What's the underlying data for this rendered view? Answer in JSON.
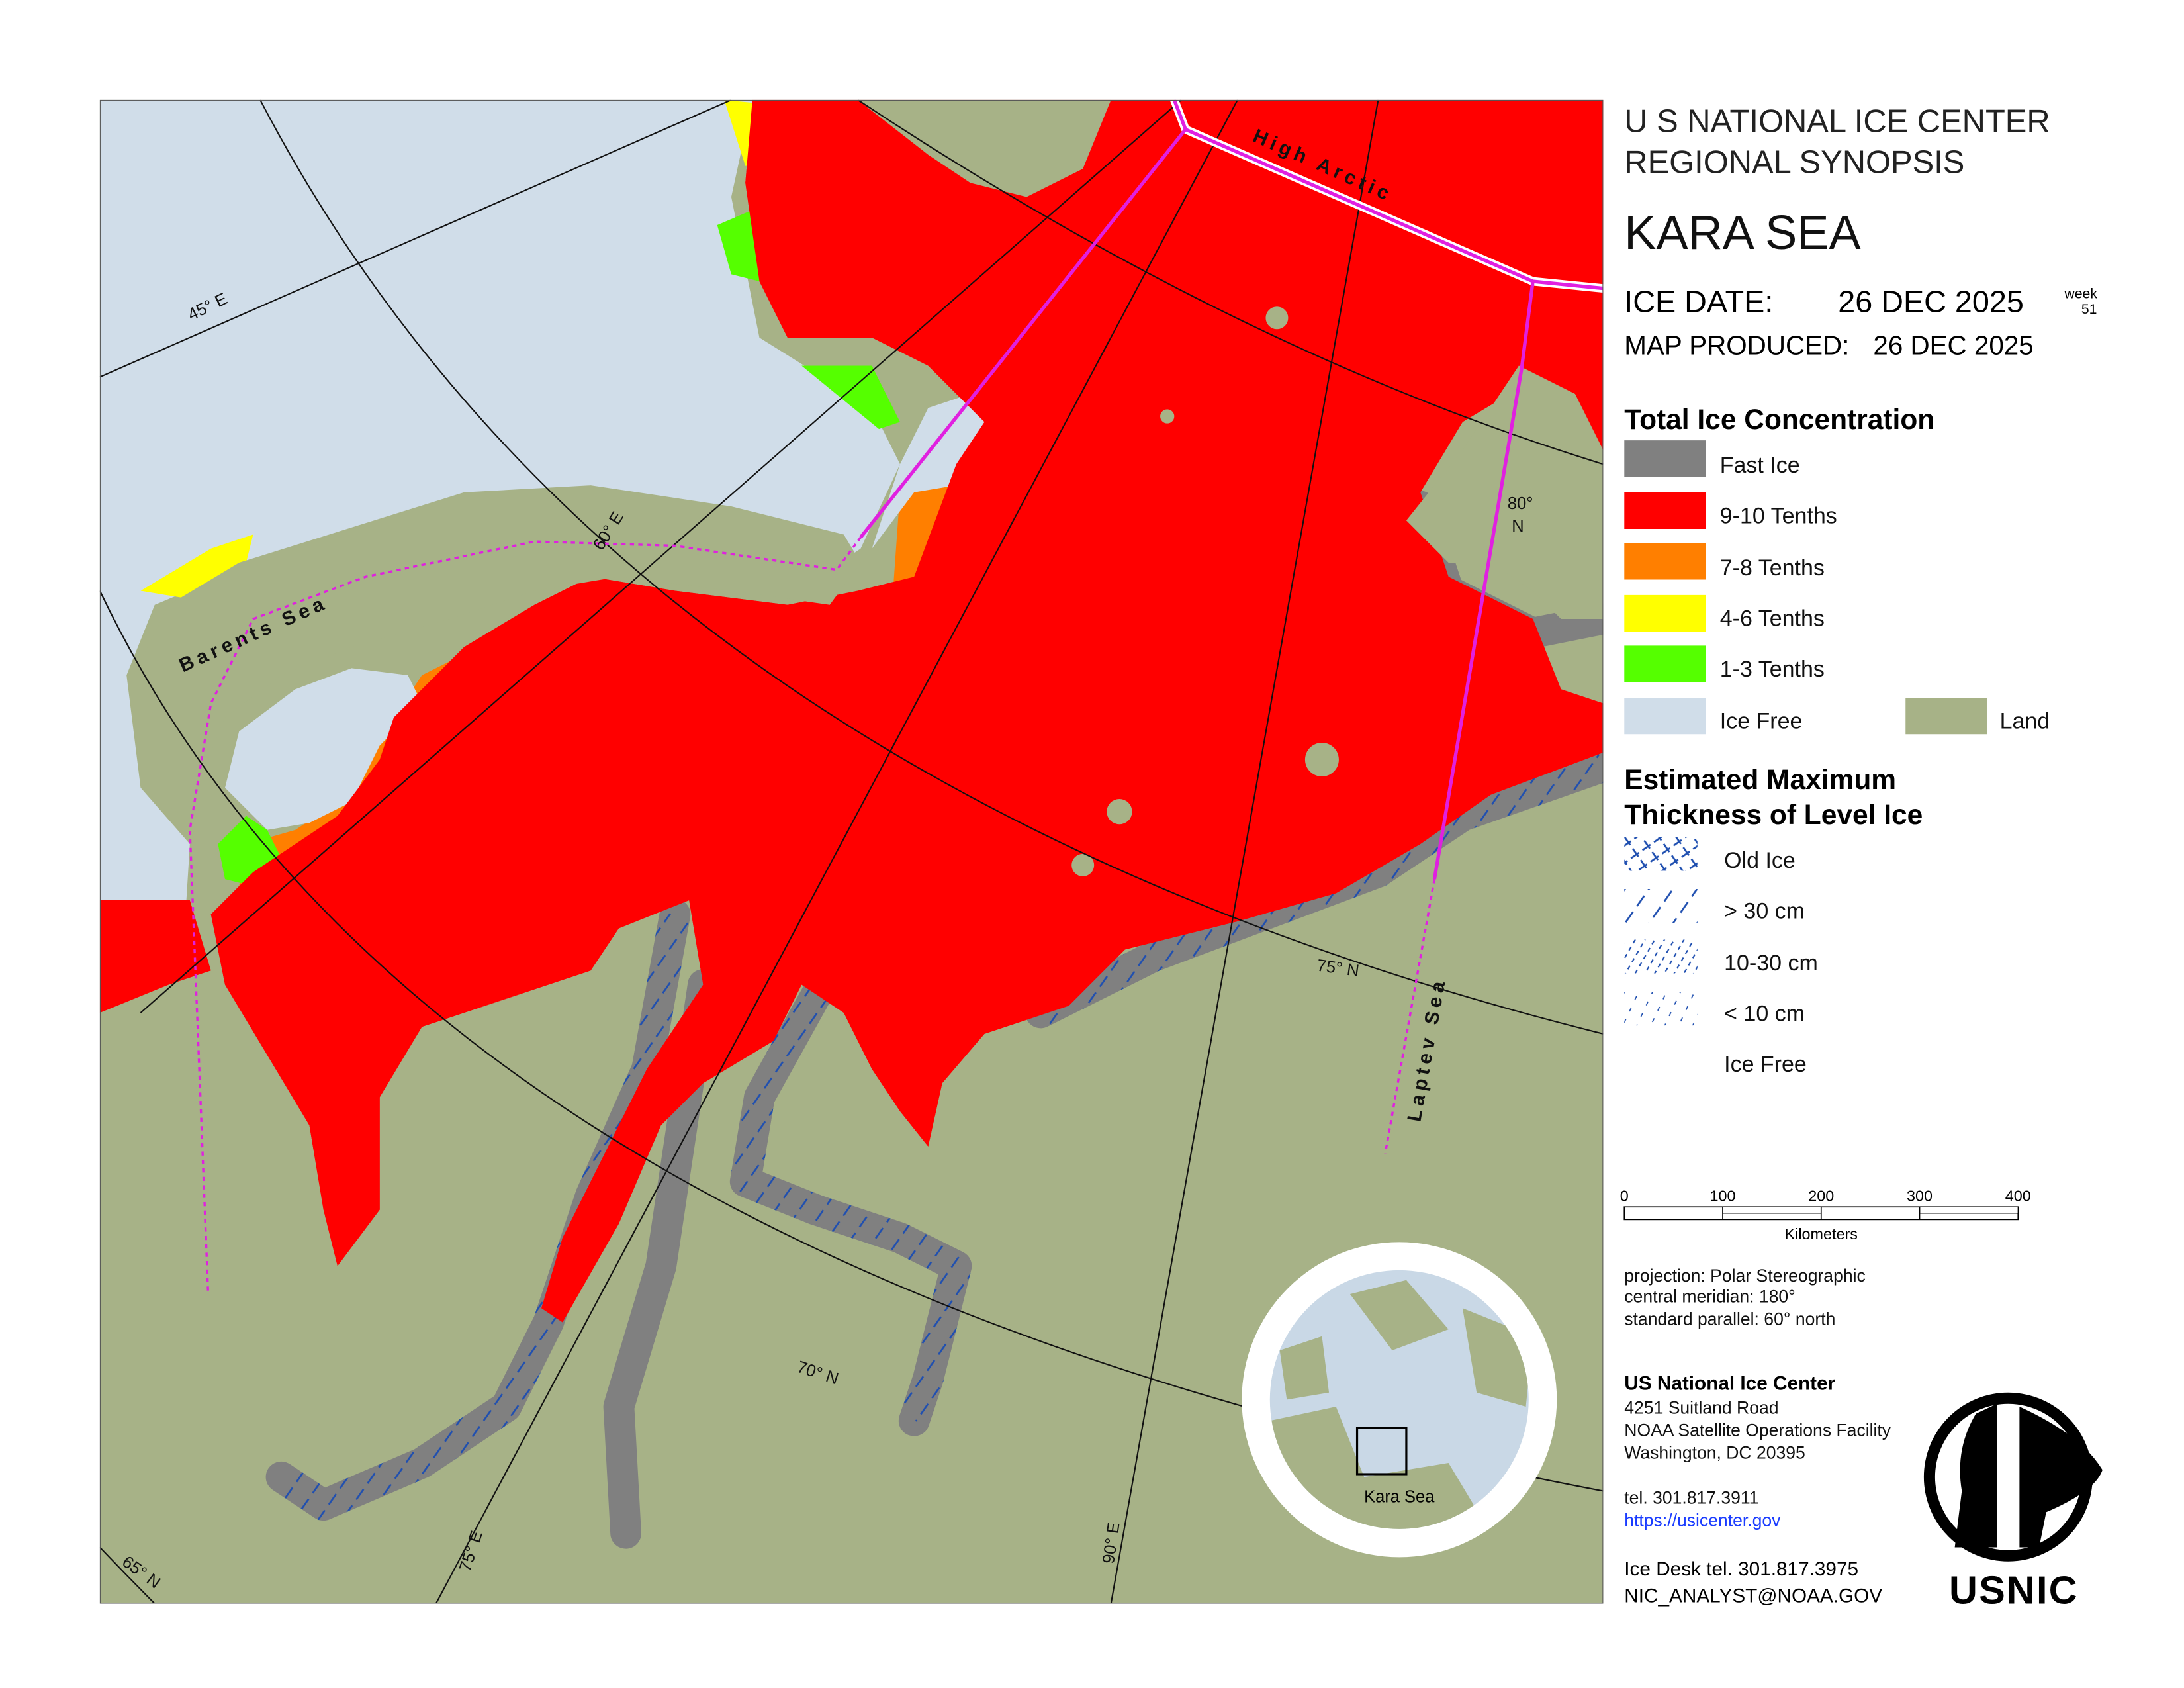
{
  "header": {
    "line1": "U S NATIONAL ICE CENTER",
    "line2": "REGIONAL SYNOPSIS",
    "region": "KARA SEA",
    "ice_date_label": "ICE DATE:",
    "ice_date": "26 DEC 2025",
    "week_label": "week",
    "week": "51",
    "map_produced_label": "MAP PRODUCED:",
    "map_produced": "26 DEC 2025"
  },
  "concentration_legend": {
    "title": "Total Ice Concentration",
    "items": [
      "Fast Ice",
      "9-10 Tenths",
      "7-8 Tenths",
      "4-6 Tenths",
      "1-3 Tenths",
      "Ice Free",
      "Land"
    ]
  },
  "thickness_legend": {
    "title_lines": [
      "Estimated Maximum",
      "Thickness of Level Ice"
    ],
    "items": [
      "Old Ice",
      "> 30 cm",
      "10-30 cm",
      "< 10 cm",
      "Ice Free"
    ]
  },
  "scale_bar": {
    "ticks": [
      0,
      100,
      200,
      300,
      400
    ],
    "unit": "Kilometers"
  },
  "projection": [
    "projection: Polar Stereographic",
    "central meridian: 180°",
    "standard parallel:  60° north"
  ],
  "contact": {
    "org": "US National Ice Center",
    "address": [
      "4251 Suitland Road",
      "NOAA Satellite Operations Facility",
      "Washington, DC  20395"
    ],
    "tel": "tel. 301.817.3911",
    "url": "https://usicenter.gov",
    "ice_desk": "Ice Desk tel. 301.817.3975",
    "email": "NIC_ANALYST@NOAA.GOV"
  },
  "logo": "USNIC",
  "inset_label": "Kara Sea",
  "map_labels": {
    "regions": [
      "High Arctic",
      "Barents Sea",
      "Laptev Sea"
    ],
    "graticule": [
      "45° E",
      "60° E",
      "75° E",
      "90° E",
      "75° N",
      "70° N",
      "65° N"
    ],
    "lat80": [
      "80°",
      "N"
    ]
  }
}
